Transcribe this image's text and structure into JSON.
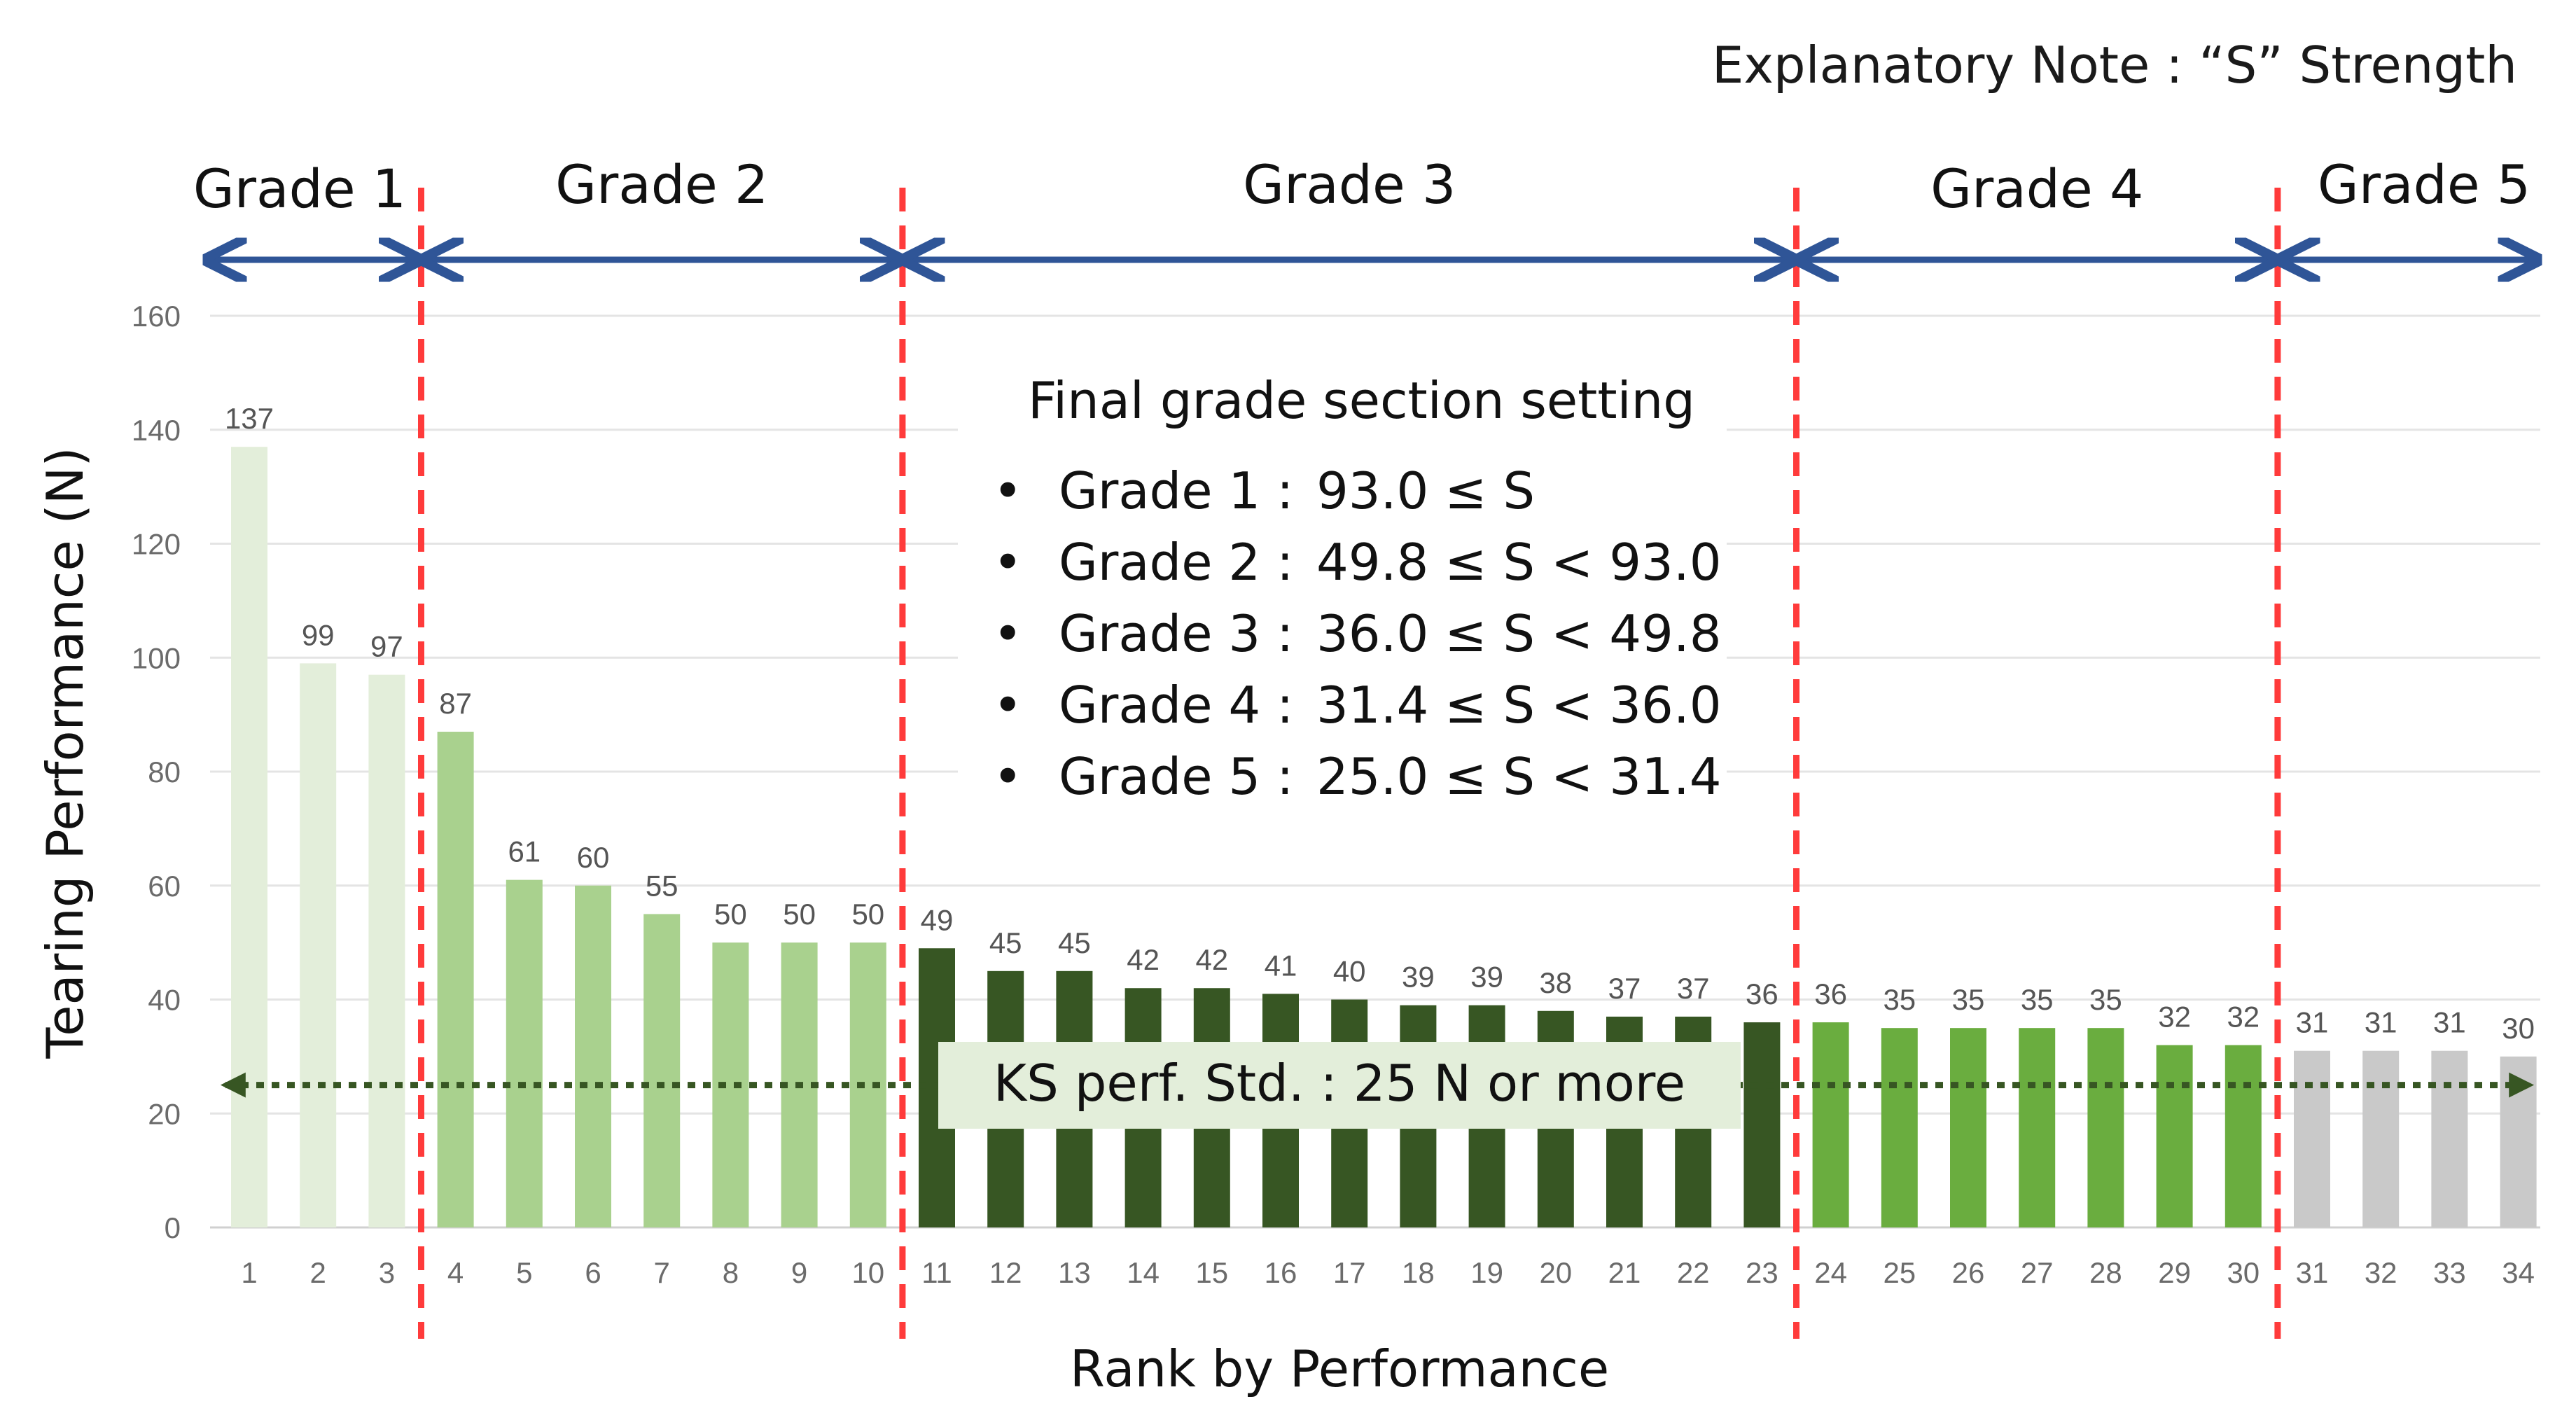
{
  "explanatory_note": "Explanatory Note : “S” Strength",
  "chart_data": {
    "type": "bar",
    "title": "",
    "xlabel": "Rank by Performance",
    "ylabel": "Tearing Performance (N)",
    "ylim": [
      0,
      160
    ],
    "yticks": [
      "0",
      "20",
      "40",
      "60",
      "80",
      "100",
      "120",
      "140",
      "160"
    ],
    "categories": [
      "1",
      "2",
      "3",
      "4",
      "5",
      "6",
      "7",
      "8",
      "9",
      "10",
      "11",
      "12",
      "13",
      "14",
      "15",
      "16",
      "17",
      "18",
      "19",
      "20",
      "21",
      "22",
      "23",
      "24",
      "25",
      "26",
      "27",
      "28",
      "29",
      "30",
      "31",
      "32",
      "33",
      "34"
    ],
    "values": [
      137,
      99,
      97,
      87,
      61,
      60,
      55,
      50,
      50,
      50,
      49,
      45,
      45,
      42,
      42,
      41,
      40,
      39,
      39,
      38,
      37,
      37,
      36,
      36,
      35,
      35,
      35,
      35,
      32,
      32,
      31,
      31,
      31,
      30
    ],
    "data_labels": [
      "137",
      "99",
      "97",
      "87",
      "61",
      "60",
      "55",
      "50",
      "50",
      "50",
      "49",
      "45",
      "45",
      "42",
      "42",
      "41",
      "40",
      "39",
      "39",
      "38",
      "37",
      "37",
      "36",
      "36",
      "35",
      "35",
      "35",
      "35",
      "32",
      "32",
      "31",
      "31",
      "31",
      "30"
    ],
    "grades": [
      {
        "label": "Grade 1",
        "first_rank": 1,
        "last_rank": 3,
        "color": "#e3eeda"
      },
      {
        "label": "Grade 2",
        "first_rank": 4,
        "last_rank": 10,
        "color": "#a9d18e"
      },
      {
        "label": "Grade 3",
        "first_rank": 11,
        "last_rank": 23,
        "color": "#375623"
      },
      {
        "label": "Grade 4",
        "first_rank": 24,
        "last_rank": 30,
        "color": "#6aad3f"
      },
      {
        "label": "Grade 5",
        "first_rank": 31,
        "last_rank": 34,
        "color": "#c9c9c9"
      }
    ],
    "reference_line": {
      "value": 25,
      "label": "KS perf. Std. : 25 N or more",
      "color": "#375623"
    },
    "grade_boundary_color": "#ff3b3b",
    "arrow_color": "#2f5597",
    "grid": true
  },
  "grade_box": {
    "title": "Final grade section setting",
    "bullet": "•",
    "items": [
      {
        "grade": "Grade 1 :",
        "range": "93.0 ≤ S"
      },
      {
        "grade": "Grade 2 :",
        "range": "49.8 ≤ S < 93.0"
      },
      {
        "grade": "Grade 3 :",
        "range": "36.0 ≤ S < 49.8"
      },
      {
        "grade": "Grade 4 :",
        "range": "31.4 ≤ S < 36.0"
      },
      {
        "grade": "Grade 5 :",
        "range": "25.0 ≤ S < 31.4"
      }
    ]
  }
}
